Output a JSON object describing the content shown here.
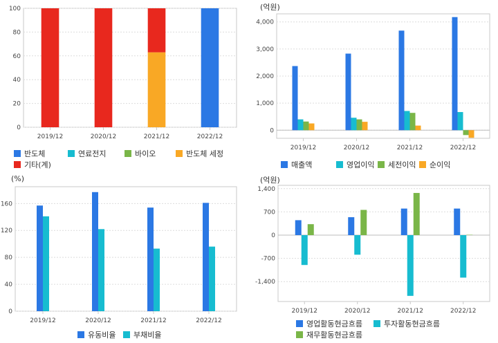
{
  "charts": [
    {
      "id": "composition",
      "unit": "",
      "chart_data": {
        "type": "bar",
        "stacked": true,
        "categories": [
          "2019/12",
          "2020/12",
          "2021/12",
          "2022/12"
        ],
        "ylim": [
          0,
          100
        ],
        "yticks": [
          0,
          20,
          40,
          60,
          80,
          100
        ],
        "ytick_labels": [
          "0",
          "20",
          "40",
          "60",
          "80",
          "100"
        ],
        "series": [
          {
            "name": "반도체",
            "color": "#2b78e4",
            "values": [
              0,
              0,
              0,
              100
            ]
          },
          {
            "name": "연료전지",
            "color": "#17bcd0",
            "values": [
              0,
              0,
              0,
              0
            ]
          },
          {
            "name": "바이오",
            "color": "#7ab648",
            "values": [
              0,
              0,
              0,
              0
            ]
          },
          {
            "name": "반도체 세정",
            "color": "#f9a825",
            "values": [
              0,
              0,
              63,
              0
            ]
          },
          {
            "name": "기타(계)",
            "color": "#e8281e",
            "values": [
              100,
              100,
              37,
              0
            ]
          }
        ]
      }
    },
    {
      "id": "profit",
      "unit": "(억원)",
      "chart_data": {
        "type": "bar",
        "categories": [
          "2019/12",
          "2020/12",
          "2021/12",
          "2022/12"
        ],
        "ylim": [
          -300,
          4300
        ],
        "yticks": [
          0,
          1000,
          2000,
          3000,
          4000
        ],
        "ytick_labels": [
          "0",
          "1,000",
          "2,000",
          "3,000",
          "4,000"
        ],
        "series": [
          {
            "name": "매출액",
            "color": "#2b78e4",
            "values": [
              2370,
              2830,
              3680,
              4180
            ]
          },
          {
            "name": "영업이익",
            "color": "#17bcd0",
            "values": [
              400,
              460,
              710,
              670
            ]
          },
          {
            "name": "세전이익",
            "color": "#7ab648",
            "values": [
              320,
              400,
              640,
              -180
            ]
          },
          {
            "name": "순이익",
            "color": "#f9a825",
            "values": [
              250,
              310,
              170,
              -280
            ]
          }
        ]
      }
    },
    {
      "id": "ratio",
      "unit": "(%)",
      "chart_data": {
        "type": "bar",
        "categories": [
          "2019/12",
          "2020/12",
          "2021/12",
          "2022/12"
        ],
        "ylim": [
          0,
          185
        ],
        "yticks": [
          0,
          40,
          80,
          120,
          160
        ],
        "ytick_labels": [
          "0",
          "40",
          "80",
          "120",
          "160"
        ],
        "series": [
          {
            "name": "유동비율",
            "color": "#2b78e4",
            "values": [
              157,
              177,
              154,
              161
            ]
          },
          {
            "name": "부채비율",
            "color": "#17bcd0",
            "values": [
              141,
              122,
              93,
              96
            ]
          }
        ]
      }
    },
    {
      "id": "cashflow",
      "unit": "(억원)",
      "chart_data": {
        "type": "bar",
        "categories": [
          "2019/12",
          "2020/12",
          "2021/12",
          "2022/12"
        ],
        "ylim": [
          -2000,
          1500
        ],
        "yticks": [
          -1400,
          -700,
          0,
          700,
          1400
        ],
        "ytick_labels": [
          "-1,400",
          "-700",
          "0",
          "700",
          "1,400"
        ],
        "series": [
          {
            "name": "영업활동현금흐름",
            "color": "#2b78e4",
            "values": [
              450,
              540,
              800,
              800
            ]
          },
          {
            "name": "투자활동현금흐름",
            "color": "#17bcd0",
            "values": [
              -900,
              -590,
              -1830,
              -1280
            ]
          },
          {
            "name": "재무활동현금흐름",
            "color": "#7ab648",
            "values": [
              330,
              760,
              1270,
              10
            ]
          }
        ]
      }
    }
  ]
}
